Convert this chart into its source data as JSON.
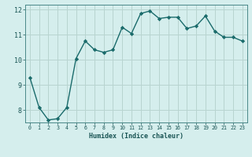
{
  "x": [
    0,
    1,
    2,
    3,
    4,
    5,
    6,
    7,
    8,
    9,
    10,
    11,
    12,
    13,
    14,
    15,
    16,
    17,
    18,
    19,
    20,
    21,
    22,
    23
  ],
  "y": [
    9.3,
    8.1,
    7.6,
    7.65,
    8.1,
    10.05,
    10.75,
    10.4,
    10.3,
    10.4,
    11.3,
    11.05,
    11.85,
    11.95,
    11.65,
    11.7,
    11.7,
    11.25,
    11.35,
    11.75,
    11.15,
    10.9,
    10.9,
    10.75
  ],
  "xlabel": "Humidex (Indice chaleur)",
  "ylim": [
    7.5,
    12.2
  ],
  "xlim": [
    -0.5,
    23.5
  ],
  "yticks": [
    8,
    9,
    10,
    11,
    12
  ],
  "xtick_labels": [
    "0",
    "1",
    "2",
    "3",
    "4",
    "5",
    "6",
    "7",
    "8",
    "9",
    "10",
    "11",
    "12",
    "13",
    "14",
    "15",
    "16",
    "17",
    "18",
    "19",
    "20",
    "21",
    "22",
    "23"
  ],
  "line_color": "#1a6b6b",
  "marker": "D",
  "marker_size": 2.2,
  "bg_color": "#d5eeed",
  "grid_color": "#b8d4d0",
  "spine_color": "#4a8888",
  "tick_color": "#1a5555",
  "label_color": "#1a5555",
  "font_family": "monospace",
  "linewidth": 1.0
}
